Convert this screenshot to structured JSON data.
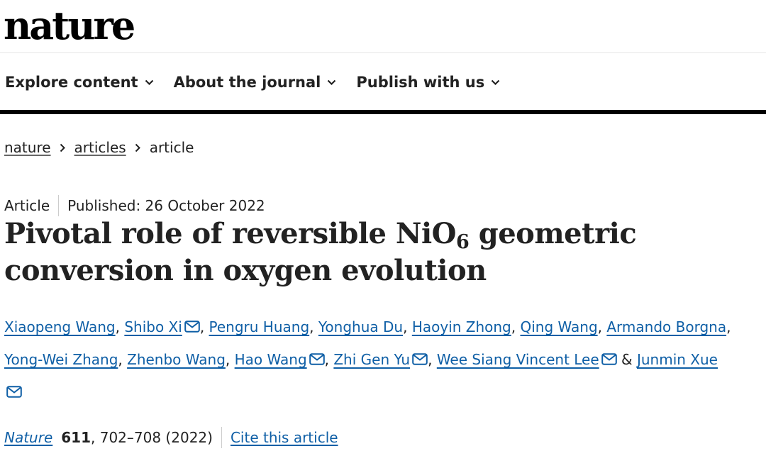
{
  "header": {
    "logo": "nature"
  },
  "nav": [
    {
      "label": "Explore content"
    },
    {
      "label": "About the journal"
    },
    {
      "label": "Publish with us"
    }
  ],
  "breadcrumb": {
    "home": "nature",
    "section": "articles",
    "current": "article"
  },
  "article": {
    "type": "Article",
    "published": "Published: 26 October 2022",
    "title_part1": "Pivotal role of reversible NiO",
    "title_sub": "6",
    "title_part2": " geometric conversion in oxygen evolution"
  },
  "authors": {
    "list": [
      "Xiaopeng Wang",
      "Shibo Xi",
      "Pengru Huang",
      "Yonghua Du",
      "Haoyin Zhong",
      "Qing Wang",
      "Armando Borgna",
      "Yong-Wei Zhang",
      "Zhenbo Wang",
      "Hao Wang",
      "Zhi Gen Yu",
      "Wee Siang Vincent Lee",
      "Junmin Xue"
    ],
    "separator": ", ",
    "final_separator": " & "
  },
  "citation": {
    "journal": "Nature",
    "volume": "611",
    "pages_year": ", 702–708 (2022)",
    "cite_label": "Cite this article"
  },
  "colors": {
    "link": "#0f5fa6",
    "text": "#222222",
    "bar": "#000000"
  }
}
